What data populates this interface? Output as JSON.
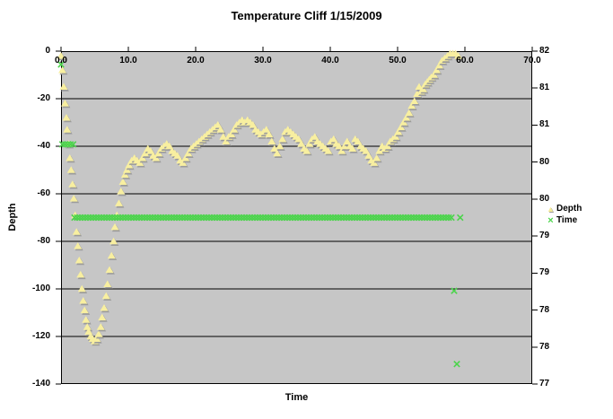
{
  "title": "Temperature Cliff 1/15/2009",
  "axes": {
    "x": {
      "title": "Time",
      "tick_labels": [
        "0.0",
        "10.0",
        "20.0",
        "30.0",
        "40.0",
        "50.0",
        "60.0",
        "70.0"
      ]
    },
    "y_left": {
      "title": "Depth",
      "tick_labels": [
        "0",
        "-20",
        "-40",
        "-60",
        "-80",
        "-100",
        "-120",
        "-140"
      ]
    },
    "y_right": {
      "tick_labels": [
        "82",
        "81",
        "81",
        "80",
        "80",
        "79",
        "79",
        "78",
        "78",
        "77"
      ]
    }
  },
  "legend": {
    "items": [
      {
        "label": "Depth",
        "marker": "triangle",
        "color": "#f6ec99"
      },
      {
        "label": "Time",
        "marker": "x",
        "color": "#4cd44c"
      }
    ]
  },
  "colors": {
    "plot_background": "#c6c6c6",
    "gridline": "#000000",
    "axis_line": "#000000",
    "depth_marker_fill": "#f8efa0",
    "depth_marker_shadow": "#9b9b9b",
    "time_marker_stroke": "#4cd44c",
    "text": "#000000"
  },
  "chart_data": {
    "type": "scatter",
    "title": "Temperature Cliff 1/15/2009",
    "xlabel": "Time",
    "ylabel_left": "Depth",
    "xlim": [
      0,
      70
    ],
    "ylim_left": [
      -140,
      0
    ],
    "ylim_right": [
      77,
      82
    ],
    "grid": "horizontal-only",
    "legend_position": "right",
    "series": [
      {
        "name": "Depth",
        "axis": "left",
        "marker": "triangle",
        "color": "#f8efa0",
        "points": [
          [
            0.0,
            -2
          ],
          [
            0.2,
            -8
          ],
          [
            0.4,
            -15
          ],
          [
            0.6,
            -22
          ],
          [
            0.8,
            -28
          ],
          [
            0.9,
            -33
          ],
          [
            1.1,
            -39
          ],
          [
            1.3,
            -45
          ],
          [
            1.5,
            -50
          ],
          [
            1.7,
            -56
          ],
          [
            1.9,
            -62
          ],
          [
            2.1,
            -69
          ],
          [
            2.3,
            -76
          ],
          [
            2.5,
            -82
          ],
          [
            2.7,
            -88
          ],
          [
            2.9,
            -94
          ],
          [
            3.1,
            -100
          ],
          [
            3.3,
            -105
          ],
          [
            3.5,
            -109
          ],
          [
            3.7,
            -113
          ],
          [
            3.9,
            -116
          ],
          [
            4.1,
            -118
          ],
          [
            4.4,
            -120
          ],
          [
            4.7,
            -121
          ],
          [
            5.0,
            -122
          ],
          [
            5.3,
            -121
          ],
          [
            5.6,
            -119
          ],
          [
            5.9,
            -116
          ],
          [
            6.1,
            -112
          ],
          [
            6.4,
            -108
          ],
          [
            6.7,
            -103
          ],
          [
            6.9,
            -98
          ],
          [
            7.2,
            -92
          ],
          [
            7.5,
            -86
          ],
          [
            7.8,
            -80
          ],
          [
            8.0,
            -74
          ],
          [
            8.3,
            -69
          ],
          [
            8.6,
            -64
          ],
          [
            8.9,
            -59
          ],
          [
            9.2,
            -55
          ],
          [
            9.5,
            -52
          ],
          [
            9.8,
            -50
          ],
          [
            10.1,
            -48
          ],
          [
            10.5,
            -46
          ],
          [
            10.9,
            -45
          ],
          [
            11.3,
            -46
          ],
          [
            11.7,
            -47
          ],
          [
            12.1,
            -45
          ],
          [
            12.5,
            -43
          ],
          [
            12.9,
            -41
          ],
          [
            13.3,
            -42
          ],
          [
            13.7,
            -44
          ],
          [
            14.1,
            -45
          ],
          [
            14.5,
            -43
          ],
          [
            14.9,
            -41
          ],
          [
            15.3,
            -40
          ],
          [
            15.7,
            -39
          ],
          [
            16.1,
            -40
          ],
          [
            16.5,
            -42
          ],
          [
            16.9,
            -43
          ],
          [
            17.3,
            -44
          ],
          [
            17.7,
            -46
          ],
          [
            18.1,
            -47
          ],
          [
            18.5,
            -45
          ],
          [
            18.9,
            -43
          ],
          [
            19.3,
            -41
          ],
          [
            19.7,
            -40
          ],
          [
            20.1,
            -39
          ],
          [
            20.5,
            -38
          ],
          [
            20.9,
            -37
          ],
          [
            21.3,
            -36
          ],
          [
            21.7,
            -35
          ],
          [
            22.1,
            -34
          ],
          [
            22.5,
            -33
          ],
          [
            22.9,
            -32
          ],
          [
            23.3,
            -31
          ],
          [
            23.7,
            -33
          ],
          [
            24.1,
            -36
          ],
          [
            24.5,
            -38
          ],
          [
            24.9,
            -36
          ],
          [
            25.3,
            -35
          ],
          [
            25.7,
            -33
          ],
          [
            26.1,
            -31
          ],
          [
            26.5,
            -30
          ],
          [
            26.9,
            -29
          ],
          [
            27.3,
            -30
          ],
          [
            27.7,
            -29
          ],
          [
            28.1,
            -30
          ],
          [
            28.5,
            -31
          ],
          [
            28.9,
            -33
          ],
          [
            29.3,
            -34
          ],
          [
            29.7,
            -35
          ],
          [
            30.1,
            -34
          ],
          [
            30.5,
            -33
          ],
          [
            30.9,
            -35
          ],
          [
            31.3,
            -38
          ],
          [
            31.7,
            -41
          ],
          [
            32.1,
            -43
          ],
          [
            32.5,
            -40
          ],
          [
            32.9,
            -37
          ],
          [
            33.3,
            -34
          ],
          [
            33.7,
            -33
          ],
          [
            34.1,
            -34
          ],
          [
            34.5,
            -35
          ],
          [
            34.9,
            -36
          ],
          [
            35.3,
            -37
          ],
          [
            35.7,
            -39
          ],
          [
            36.1,
            -41
          ],
          [
            36.5,
            -42
          ],
          [
            36.9,
            -39
          ],
          [
            37.3,
            -37
          ],
          [
            37.7,
            -36
          ],
          [
            38.1,
            -38
          ],
          [
            38.5,
            -39
          ],
          [
            38.9,
            -40
          ],
          [
            39.3,
            -41
          ],
          [
            39.7,
            -42
          ],
          [
            40.1,
            -38
          ],
          [
            40.5,
            -37
          ],
          [
            40.9,
            -39
          ],
          [
            41.3,
            -40
          ],
          [
            41.7,
            -42
          ],
          [
            42.1,
            -40
          ],
          [
            42.5,
            -38
          ],
          [
            42.9,
            -40
          ],
          [
            43.3,
            -41
          ],
          [
            43.7,
            -37
          ],
          [
            44.1,
            -38
          ],
          [
            44.5,
            -40
          ],
          [
            44.9,
            -41
          ],
          [
            45.3,
            -42
          ],
          [
            45.7,
            -44
          ],
          [
            46.1,
            -46
          ],
          [
            46.5,
            -47
          ],
          [
            46.9,
            -45
          ],
          [
            47.3,
            -42
          ],
          [
            47.7,
            -40
          ],
          [
            48.1,
            -41
          ],
          [
            48.5,
            -40
          ],
          [
            48.9,
            -38
          ],
          [
            49.3,
            -37
          ],
          [
            49.7,
            -36
          ],
          [
            50.1,
            -34
          ],
          [
            50.5,
            -32
          ],
          [
            50.9,
            -30
          ],
          [
            51.3,
            -28
          ],
          [
            51.7,
            -26
          ],
          [
            52.1,
            -23
          ],
          [
            52.5,
            -21
          ],
          [
            52.9,
            -18
          ],
          [
            53.2,
            -15
          ],
          [
            53.5,
            -17
          ],
          [
            53.8,
            -16
          ],
          [
            54.1,
            -14
          ],
          [
            54.4,
            -13
          ],
          [
            54.7,
            -12
          ],
          [
            55.0,
            -11
          ],
          [
            55.4,
            -10
          ],
          [
            55.8,
            -8
          ],
          [
            56.2,
            -6
          ],
          [
            56.6,
            -4
          ],
          [
            57.0,
            -3
          ],
          [
            57.4,
            -2
          ],
          [
            57.8,
            -1
          ],
          [
            58.2,
            -1
          ],
          [
            58.6,
            -1
          ],
          [
            59.0,
            -2
          ]
        ]
      },
      {
        "name": "Time",
        "axis": "right",
        "marker": "x",
        "color": "#4cd44c",
        "constant_band": {
          "t_start": 2.0,
          "t_end": 58.3,
          "t_step": 0.4,
          "value": 79.5
        },
        "points": [
          [
            0.0,
            81.8
          ],
          [
            0.2,
            80.6
          ],
          [
            0.6,
            80.6
          ],
          [
            1.0,
            80.6
          ],
          [
            1.4,
            80.6
          ],
          [
            1.8,
            80.6
          ],
          [
            59.3,
            79.5
          ],
          [
            58.4,
            78.4
          ],
          [
            58.8,
            77.3
          ]
        ]
      }
    ]
  }
}
